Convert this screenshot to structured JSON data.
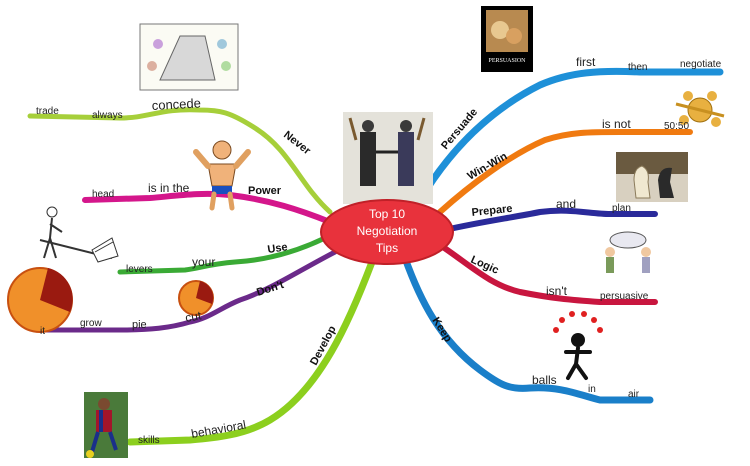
{
  "center": {
    "lines": [
      "Top 10",
      "Negotiation",
      "Tips"
    ],
    "fill": "#e8323c",
    "text_color": "#ffffff"
  },
  "branches": {
    "never": {
      "label": "Never",
      "color": "#a6cf3a",
      "sub": [
        "concede",
        "always",
        "trade"
      ]
    },
    "power": {
      "label": "Power",
      "color": "#d4168b",
      "sub": [
        "is in the",
        "head"
      ]
    },
    "use": {
      "label": "Use",
      "color": "#3aaa35",
      "sub": [
        "your",
        "levers"
      ]
    },
    "dont": {
      "label": "Don't",
      "color": "#6b2a8a",
      "sub": [
        "cut",
        "pie",
        "grow",
        "it"
      ]
    },
    "develop": {
      "label": "Develop",
      "color": "#8ccf1e",
      "sub": [
        "behavioral",
        "skills"
      ]
    },
    "keep": {
      "label": "Keep",
      "color": "#1a7fc9",
      "sub": [
        "balls",
        "in",
        "air"
      ]
    },
    "logic": {
      "label": "Logic",
      "color": "#c8163f",
      "sub": [
        "isn't",
        "persuasive"
      ]
    },
    "prepare": {
      "label": "Prepare",
      "color": "#2a2a9a",
      "sub": [
        "and",
        "plan"
      ]
    },
    "winwin": {
      "label": "Win-Win",
      "color": "#f07a10",
      "sub": [
        "is not",
        "50:50"
      ]
    },
    "persuade": {
      "label": "Persuade",
      "color": "#1e90d8",
      "sub": [
        "first",
        "then",
        "negotiate"
      ]
    }
  },
  "icons": {
    "persuasion_caption": "PERSUASION"
  }
}
